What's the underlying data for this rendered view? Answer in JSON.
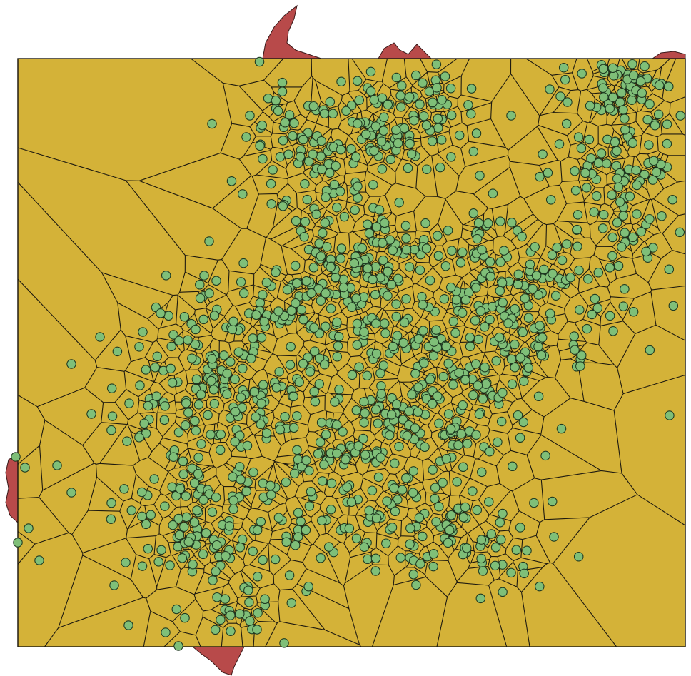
{
  "map": {
    "type": "voronoi-diagram",
    "background_color": "#ffffff",
    "layers": [
      {
        "name": "region-boundary",
        "fill": "#b84a4a",
        "stroke": "#3a1a1a"
      },
      {
        "name": "voronoi-cells",
        "fill": "#d4b238",
        "stroke": "#1e1a10"
      },
      {
        "name": "seed-points",
        "fill": "#7fbf78",
        "stroke": "#1f3a22"
      }
    ],
    "extent_frame": true,
    "point_count_approx": 1200
  }
}
